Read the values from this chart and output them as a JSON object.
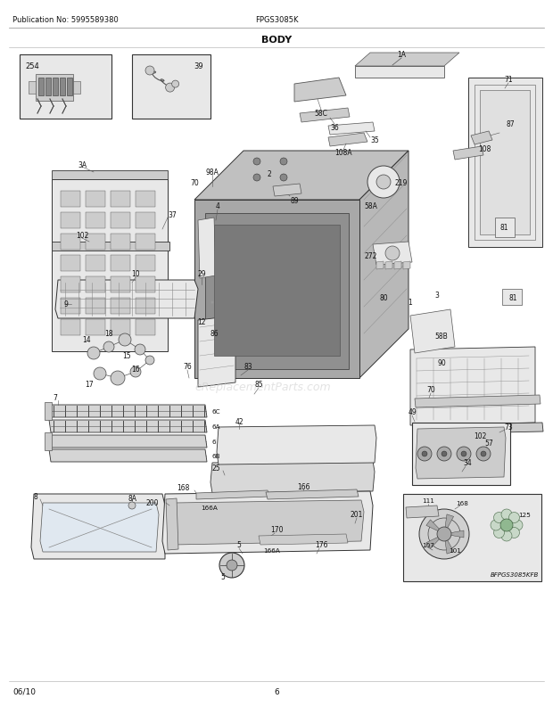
{
  "title_left": "Publication No: 5995589380",
  "title_center": "FPGS3085K",
  "title_body": "BODY",
  "footer_left": "06/10",
  "footer_center": "6",
  "bg_color": "#ffffff",
  "text_color": "#111111",
  "watermark": "eReplacementParts.com",
  "image_code": "BFPGS3085KFB",
  "fig_width": 6.2,
  "fig_height": 8.03,
  "dpi": 100,
  "line_gray": "#555555",
  "fill_light": "#e8e8e8",
  "fill_mid": "#cccccc",
  "fill_dark": "#aaaaaa",
  "fill_darker": "#888888"
}
